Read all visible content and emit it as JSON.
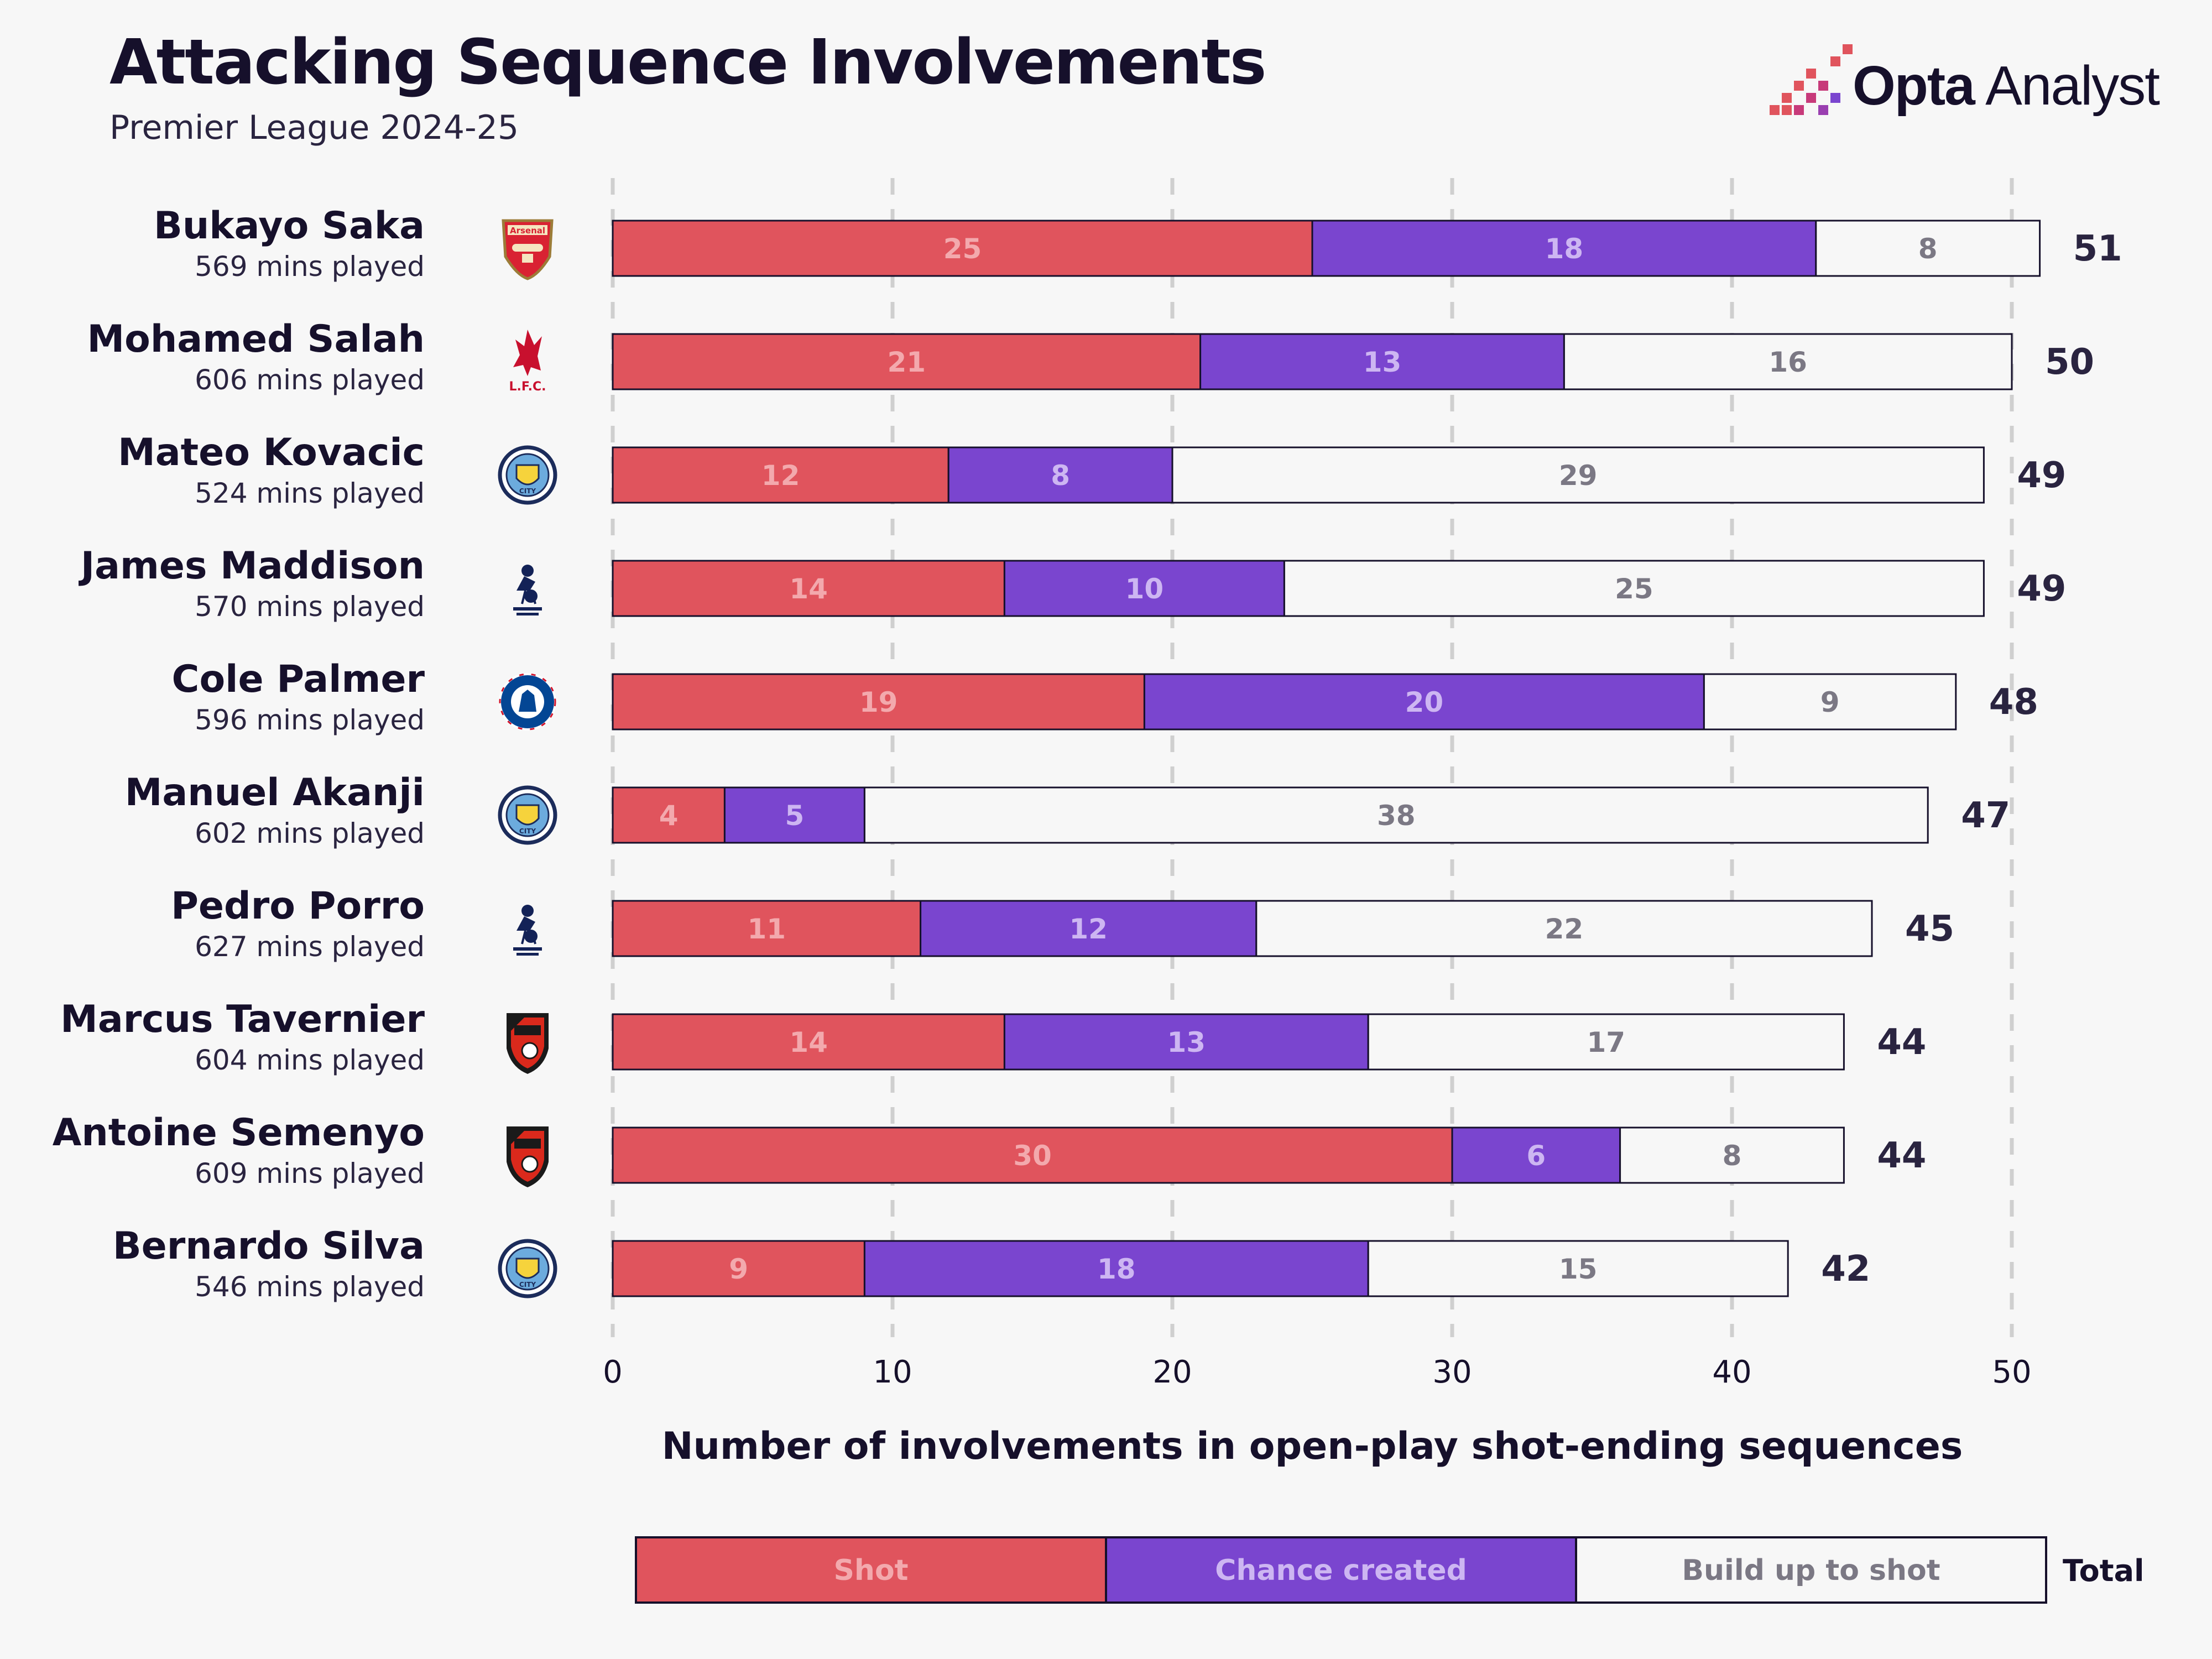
{
  "header": {
    "title": "Attacking Sequence Involvements",
    "subtitle": "Premier League 2024-25",
    "brand": "Opta Analyst",
    "brand_bold": "Opta",
    "brand_light": " Analyst"
  },
  "colors": {
    "shot": "#e0545d",
    "chance_created": "#7a45cf",
    "build_up": "#f7f7f7",
    "outline": "#16102b",
    "shot_text": "#f3a9ad",
    "chance_text": "#cdb6f2",
    "build_text": "#7b7884",
    "grid": "#cfcfcf"
  },
  "chart_data": {
    "type": "bar",
    "orientation": "horizontal",
    "stacked": true,
    "xlabel": "Number of involvements in open-play shot-ending sequences",
    "xlim": [
      0,
      50
    ],
    "xticks": [
      0,
      10,
      20,
      30,
      40,
      50
    ],
    "grid": "vertical dashed",
    "legend_position": "bottom",
    "legend_total_label": "Total",
    "series": [
      {
        "name": "Shot",
        "values": [
          25,
          21,
          12,
          14,
          19,
          4,
          11,
          14,
          30,
          9
        ]
      },
      {
        "name": "Chance created",
        "values": [
          18,
          13,
          8,
          10,
          20,
          5,
          12,
          13,
          6,
          18
        ]
      },
      {
        "name": "Build up to shot",
        "values": [
          8,
          16,
          29,
          25,
          9,
          38,
          22,
          17,
          8,
          15
        ]
      }
    ],
    "totals": [
      51,
      50,
      49,
      49,
      48,
      47,
      45,
      44,
      44,
      42
    ],
    "players": [
      {
        "name": "Bukayo Saka",
        "mins": "569 mins played",
        "club": "arsenal",
        "badge_text": "Arsenal"
      },
      {
        "name": "Mohamed Salah",
        "mins": "606 mins played",
        "club": "liverpool",
        "badge_text": "L.F.C."
      },
      {
        "name": "Mateo Kovacic",
        "mins": "524 mins played",
        "club": "man-city",
        "badge_text": "CITY"
      },
      {
        "name": "James Maddison",
        "mins": "570 mins played",
        "club": "tottenham",
        "badge_text": ""
      },
      {
        "name": "Cole Palmer",
        "mins": "596 mins played",
        "club": "chelsea",
        "badge_text": ""
      },
      {
        "name": "Manuel Akanji",
        "mins": "602 mins played",
        "club": "man-city",
        "badge_text": "CITY"
      },
      {
        "name": "Pedro Porro",
        "mins": "627 mins played",
        "club": "tottenham",
        "badge_text": ""
      },
      {
        "name": "Marcus Tavernier",
        "mins": "604 mins played",
        "club": "bournemouth",
        "badge_text": ""
      },
      {
        "name": "Antoine Semenyo",
        "mins": "609 mins played",
        "club": "bournemouth",
        "badge_text": ""
      },
      {
        "name": "Bernardo Silva",
        "mins": "546 mins played",
        "club": "man-city",
        "badge_text": "CITY"
      }
    ]
  }
}
